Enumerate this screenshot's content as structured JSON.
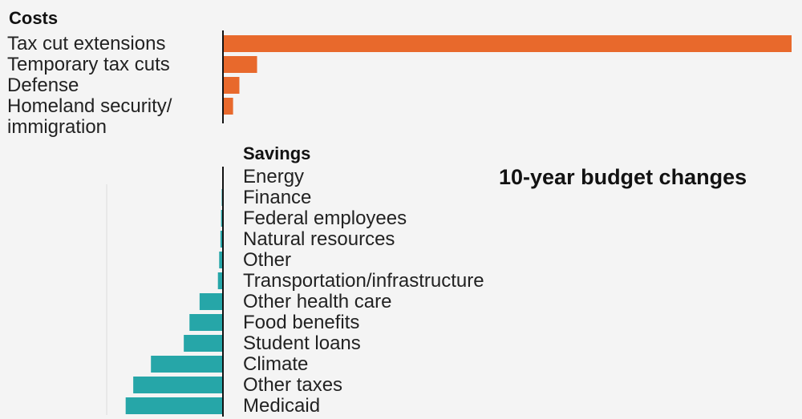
{
  "title": "10-year budget changes",
  "chart_data": {
    "type": "bar",
    "orientation": "horizontal",
    "title": "10-year budget changes",
    "groups": [
      {
        "name": "Costs",
        "direction": "positive",
        "color": "#e8692c",
        "categories": [
          "Tax cut extensions",
          "Temporary tax cuts",
          "Defense",
          "Homeland security/ immigration"
        ],
        "display_labels": [
          [
            "Tax cut extensions"
          ],
          [
            "Temporary tax cuts"
          ],
          [
            "Defense"
          ],
          [
            "Homeland security/",
            "immigration"
          ]
        ],
        "values": [
          4500,
          270,
          130,
          80
        ]
      },
      {
        "name": "Savings",
        "direction": "negative",
        "color": "#26a6a8",
        "categories": [
          "Energy",
          "Finance",
          "Federal employees",
          "Natural resources",
          "Other",
          "Transportation/infrastructure",
          "Other health care",
          "Food benefits",
          "Student loans",
          "Climate",
          "Other taxes",
          "Medicaid"
        ],
        "values": [
          -5,
          -10,
          -15,
          -20,
          -30,
          -40,
          -185,
          -265,
          -310,
          -570,
          -710,
          -770
        ]
      }
    ]
  }
}
